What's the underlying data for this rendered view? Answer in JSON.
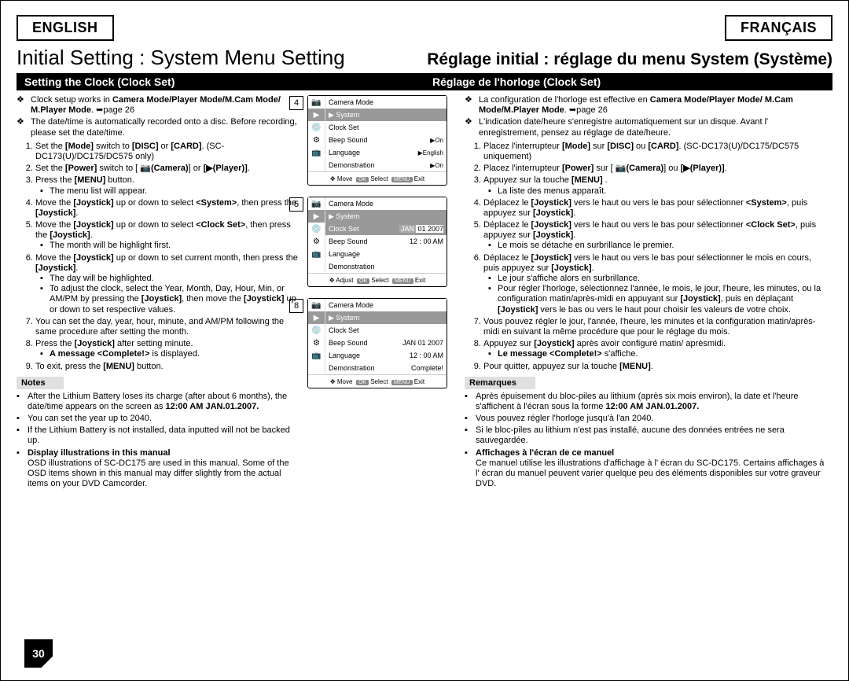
{
  "lang": {
    "en": "ENGLISH",
    "fr": "FRANÇAIS"
  },
  "title": {
    "en": "Initial Setting : System Menu Setting",
    "fr": "Réglage initial : réglage du menu System (Système)"
  },
  "subtitle": {
    "en": "Setting the Clock (Clock Set)",
    "fr": "Réglage de l'horloge (Clock Set)"
  },
  "intro_en": [
    "Clock setup works in <b>Camera Mode/Player Mode/M.Cam Mode/ M.Player Mode</b>. ➥page 26",
    "The date/time is automatically recorded onto a disc. Before recording, please set the date/time."
  ],
  "intro_fr": [
    "La configuration de l'horloge est effective en <b>Camera Mode/Player Mode/ M.Cam Mode/M.Player Mode</b>. ➥page 26",
    "L'indication date/heure s'enregistre automatiquement sur un disque. Avant l' enregistrement, pensez au réglage de date/heure."
  ],
  "steps_en": [
    "Set the <b>[Mode]</b> switch to <b>[DISC]</b> or <b>[CARD]</b>. (SC-DC173(U)/DC175/DC575 only)",
    "Set the <b>[Power]</b> switch to [ 📷<b>(Camera)</b>] or <b>[▶(Player)]</b>.",
    "Press the <b>[MENU]</b> button.<ul class='sub'><li>The menu list will appear.</li></ul>",
    "Move the <b>[Joystick]</b> up or down to select <b>&lt;System&gt;</b>, then press the <b>[Joystick]</b>.",
    "Move the <b>[Joystick]</b> up or down to select <b>&lt;Clock Set&gt;</b>, then press the <b>[Joystick]</b>.<ul class='sub'><li>The month will be highlight first.</li></ul>",
    "Move the <b>[Joystick]</b> up or down to set current month, then press the <b>[Joystick]</b>.<ul class='sub'><li>The day will be highlighted.</li><li>To adjust the clock, select the Year, Month, Day, Hour, Min, or AM/PM by pressing the <b>[Joystick]</b>, then move the <b>[Joystick]</b> up or down to set respective values.</li></ul>",
    "You can set the day, year, hour, minute, and AM/PM following the same procedure after setting the month.",
    "Press the <b>[Joystick]</b> after setting minute.<ul class='sub'><li><b>A message &lt;Complete!&gt;</b> is displayed.</li></ul>",
    "To exit, press the <b>[MENU]</b> button."
  ],
  "steps_fr": [
    "Placez l'interrupteur <b>[Mode]</b> sur <b>[DISC]</b> ou <b>[CARD]</b>. (SC-DC173(U)/DC175/DC575 uniquement)",
    "Placez l'interrupteur <b>[Power]</b> sur [ 📷<b>(Camera)</b>] ou <b>[▶(Player)]</b>.",
    "Appuyez sur la touche <b>[MENU]</b> .<ul class='sub'><li>La liste des menus apparaît.</li></ul>",
    "Déplacez le <b>[Joystick]</b> vers le haut ou vers le bas pour sélectionner <b>&lt;System&gt;</b>, puis appuyez sur <b>[Joystick]</b>.",
    "Déplacez le <b>[Joystick]</b> vers le haut ou vers le bas pour sélectionner <b>&lt;Clock Set&gt;</b>, puis appuyez sur <b>[Joystick]</b>.<ul class='sub'><li>Le mois se détache en surbrillance le premier.</li></ul>",
    "Déplacez le <b>[Joystick]</b> vers le haut ou vers le bas pour sélectionner le mois en cours, puis appuyez sur <b>[Joystick]</b>.<ul class='sub'><li>Le jour s'affiche alors en surbrillance.</li><li>Pour régler l'horloge, sélectionnez l'année, le mois, le jour, l'heure, les minutes, ou la configuration matin/après-midi en appuyant sur <b>[Joystick]</b>, puis en déplaçant <b>[Joystick]</b> vers le bas ou vers le haut pour choisir les valeurs de votre choix.</li></ul>",
    "Vous pouvez régler le jour, l'année, l'heure, les minutes et la configuration matin/après-midi en suivant la même procédure que pour le réglage du mois.",
    "Appuyez sur <b>[Joystick]</b> après avoir configuré matin/ aprèsmidi.<ul class='sub'><li><b>Le message &lt;Complete!&gt;</b> s'affiche.</li></ul>",
    "Pour quitter, appuyez sur la touche <b>[MENU]</b>."
  ],
  "notes_hdr": {
    "en": "Notes",
    "fr": "Remarques"
  },
  "notes_en": [
    "After the Lithium Battery loses its charge (after about 6 months), the date/time appears on the screen as <b>12:00 AM JAN.01.2007.</b>",
    "You can set the year up to 2040.",
    "If the Lithium Battery is not installed, data inputted will not be backed up.",
    "<b>Display illustrations in this manual</b><br>OSD illustrations of SC-DC175 are used in this manual. Some of the OSD items shown in this manual may differ slightly from the actual items on your DVD Camcorder."
  ],
  "notes_fr": [
    "Après épuisement du bloc-piles au lithium (après six mois environ), la date et l'heure s'affichent à l'écran sous la forme <b>12:00 AM JAN.01.2007.</b>",
    "Vous pouvez régler l'horloge jusqu'à l'an 2040.",
    "Si le bloc-piles au lithium n'est pas installé, aucune des données entrées ne sera sauvegardée.",
    "<b>Affichages à l'écran de ce manuel</b><br>Ce manuel utilise les illustrations d'affichage à l' écran du SC-DC175. Certains affichages à l' écran du manuel peuvent varier quelque peu des éléments disponibles sur votre graveur DVD."
  ],
  "osd": {
    "labels": [
      "4",
      "5",
      "8"
    ],
    "mode": "Camera Mode",
    "system": "System",
    "rows4": [
      {
        "name": "Clock Set",
        "val": ""
      },
      {
        "name": "Beep Sound",
        "val": "▶On"
      },
      {
        "name": "Language",
        "val": "▶English"
      },
      {
        "name": "Demonstration",
        "val": "▶On"
      }
    ],
    "rows5": [
      {
        "name": "Clock Set",
        "sel": true,
        "val": ""
      },
      {
        "name": "Beep Sound",
        "val": ""
      },
      {
        "name": "Language",
        "val": ""
      },
      {
        "name": "Demonstration",
        "val": ""
      }
    ],
    "rows8": [
      {
        "name": "Clock Set",
        "val": ""
      },
      {
        "name": "Beep Sound",
        "val": "JAN 01 2007"
      },
      {
        "name": "Language",
        "val": "12 : 00  AM"
      },
      {
        "name": "Demonstration",
        "val": "Complete!"
      }
    ],
    "date5_a": "JAN",
    "date5_b": "01  2007",
    "time5": "12 : 00  AM",
    "bottom_move": "Move",
    "bottom_adjust": "Adjust",
    "bottom_select": "Select",
    "bottom_exit": "Exit",
    "ok": "OK",
    "menu": "MENU",
    "arrows": "✥"
  },
  "page_number": "30"
}
